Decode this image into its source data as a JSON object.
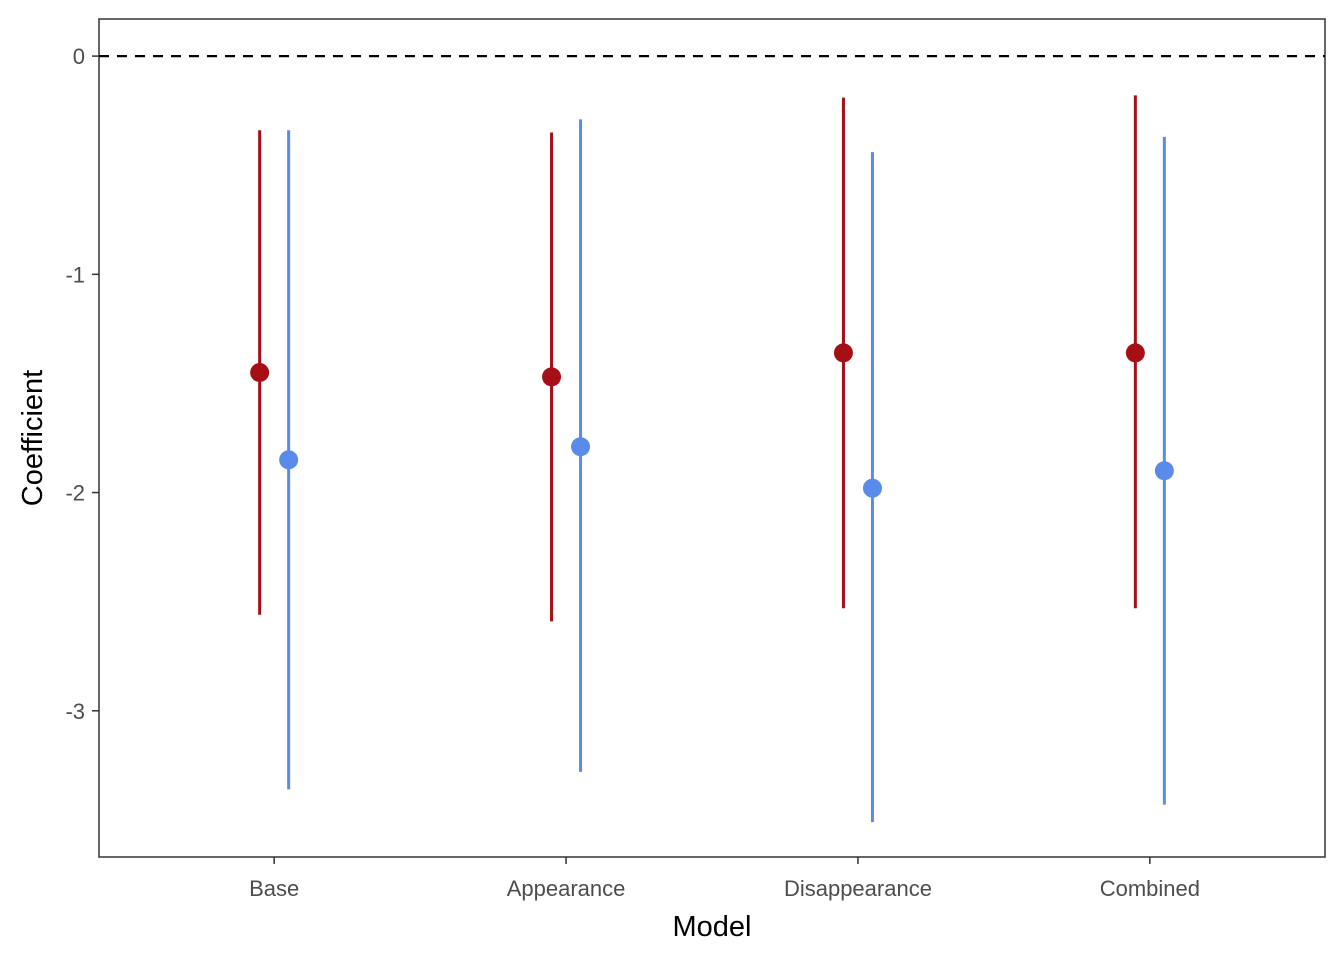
{
  "chart_data": {
    "type": "pointrange",
    "xlabel": "Model",
    "ylabel": "Coefficient",
    "categories": [
      "Base",
      "Appearance",
      "Disappearance",
      "Combined"
    ],
    "ylim": [
      -3.67,
      0.17
    ],
    "yticks": [
      0,
      -1,
      -2,
      -3
    ],
    "ytick_labels": [
      "0",
      "-1",
      "-2",
      "-3"
    ],
    "reference_line": {
      "y": 0,
      "style": "dashed"
    },
    "grid": false,
    "legend": "none",
    "series": [
      {
        "color": "#A50F15",
        "points": [
          {
            "category": "Base",
            "estimate": -1.45,
            "lower": -2.56,
            "upper": -0.34
          },
          {
            "category": "Appearance",
            "estimate": -1.47,
            "lower": -2.59,
            "upper": -0.35
          },
          {
            "category": "Disappearance",
            "estimate": -1.36,
            "lower": -2.53,
            "upper": -0.19
          },
          {
            "category": "Combined",
            "estimate": -1.36,
            "lower": -2.53,
            "upper": -0.18
          }
        ]
      },
      {
        "color": "#5B8BEA",
        "points": [
          {
            "category": "Base",
            "estimate": -1.85,
            "lower": -3.36,
            "upper": -0.34
          },
          {
            "category": "Appearance",
            "estimate": -1.79,
            "lower": -3.28,
            "upper": -0.29
          },
          {
            "category": "Disappearance",
            "estimate": -1.98,
            "lower": -3.51,
            "upper": -0.44
          },
          {
            "category": "Combined",
            "estimate": -1.9,
            "lower": -3.43,
            "upper": -0.37
          }
        ]
      }
    ]
  }
}
